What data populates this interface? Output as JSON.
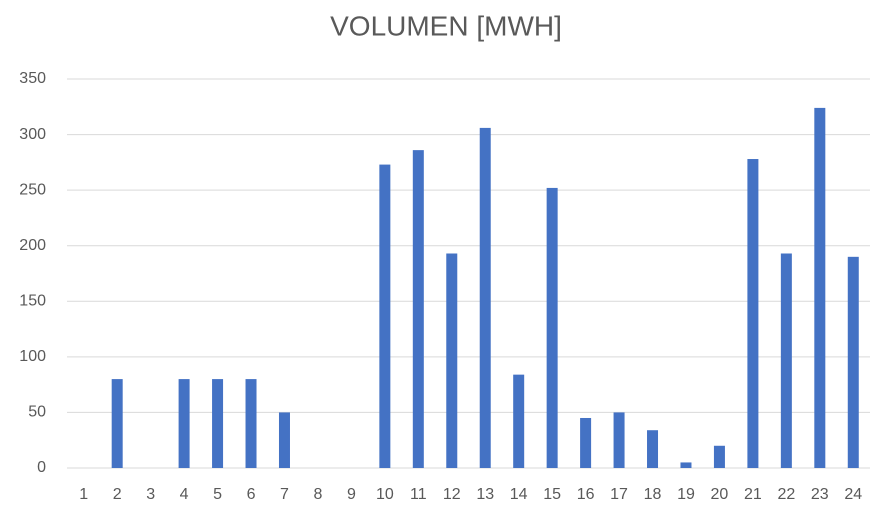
{
  "chart_data": {
    "type": "bar",
    "title": "VOLUMEN [MWH]",
    "categories": [
      "1",
      "2",
      "3",
      "4",
      "5",
      "6",
      "7",
      "8",
      "9",
      "10",
      "11",
      "12",
      "13",
      "14",
      "15",
      "16",
      "17",
      "18",
      "19",
      "20",
      "21",
      "22",
      "23",
      "24"
    ],
    "values": [
      0,
      80,
      0,
      80,
      80,
      80,
      50,
      0,
      0,
      273,
      286,
      193,
      306,
      84,
      252,
      45,
      50,
      34,
      5,
      20,
      278,
      193,
      324,
      190
    ],
    "color": "#4472c4",
    "ylim": [
      0,
      350
    ],
    "yticks": [
      0,
      50,
      100,
      150,
      200,
      250,
      300,
      350
    ],
    "grid": true
  }
}
